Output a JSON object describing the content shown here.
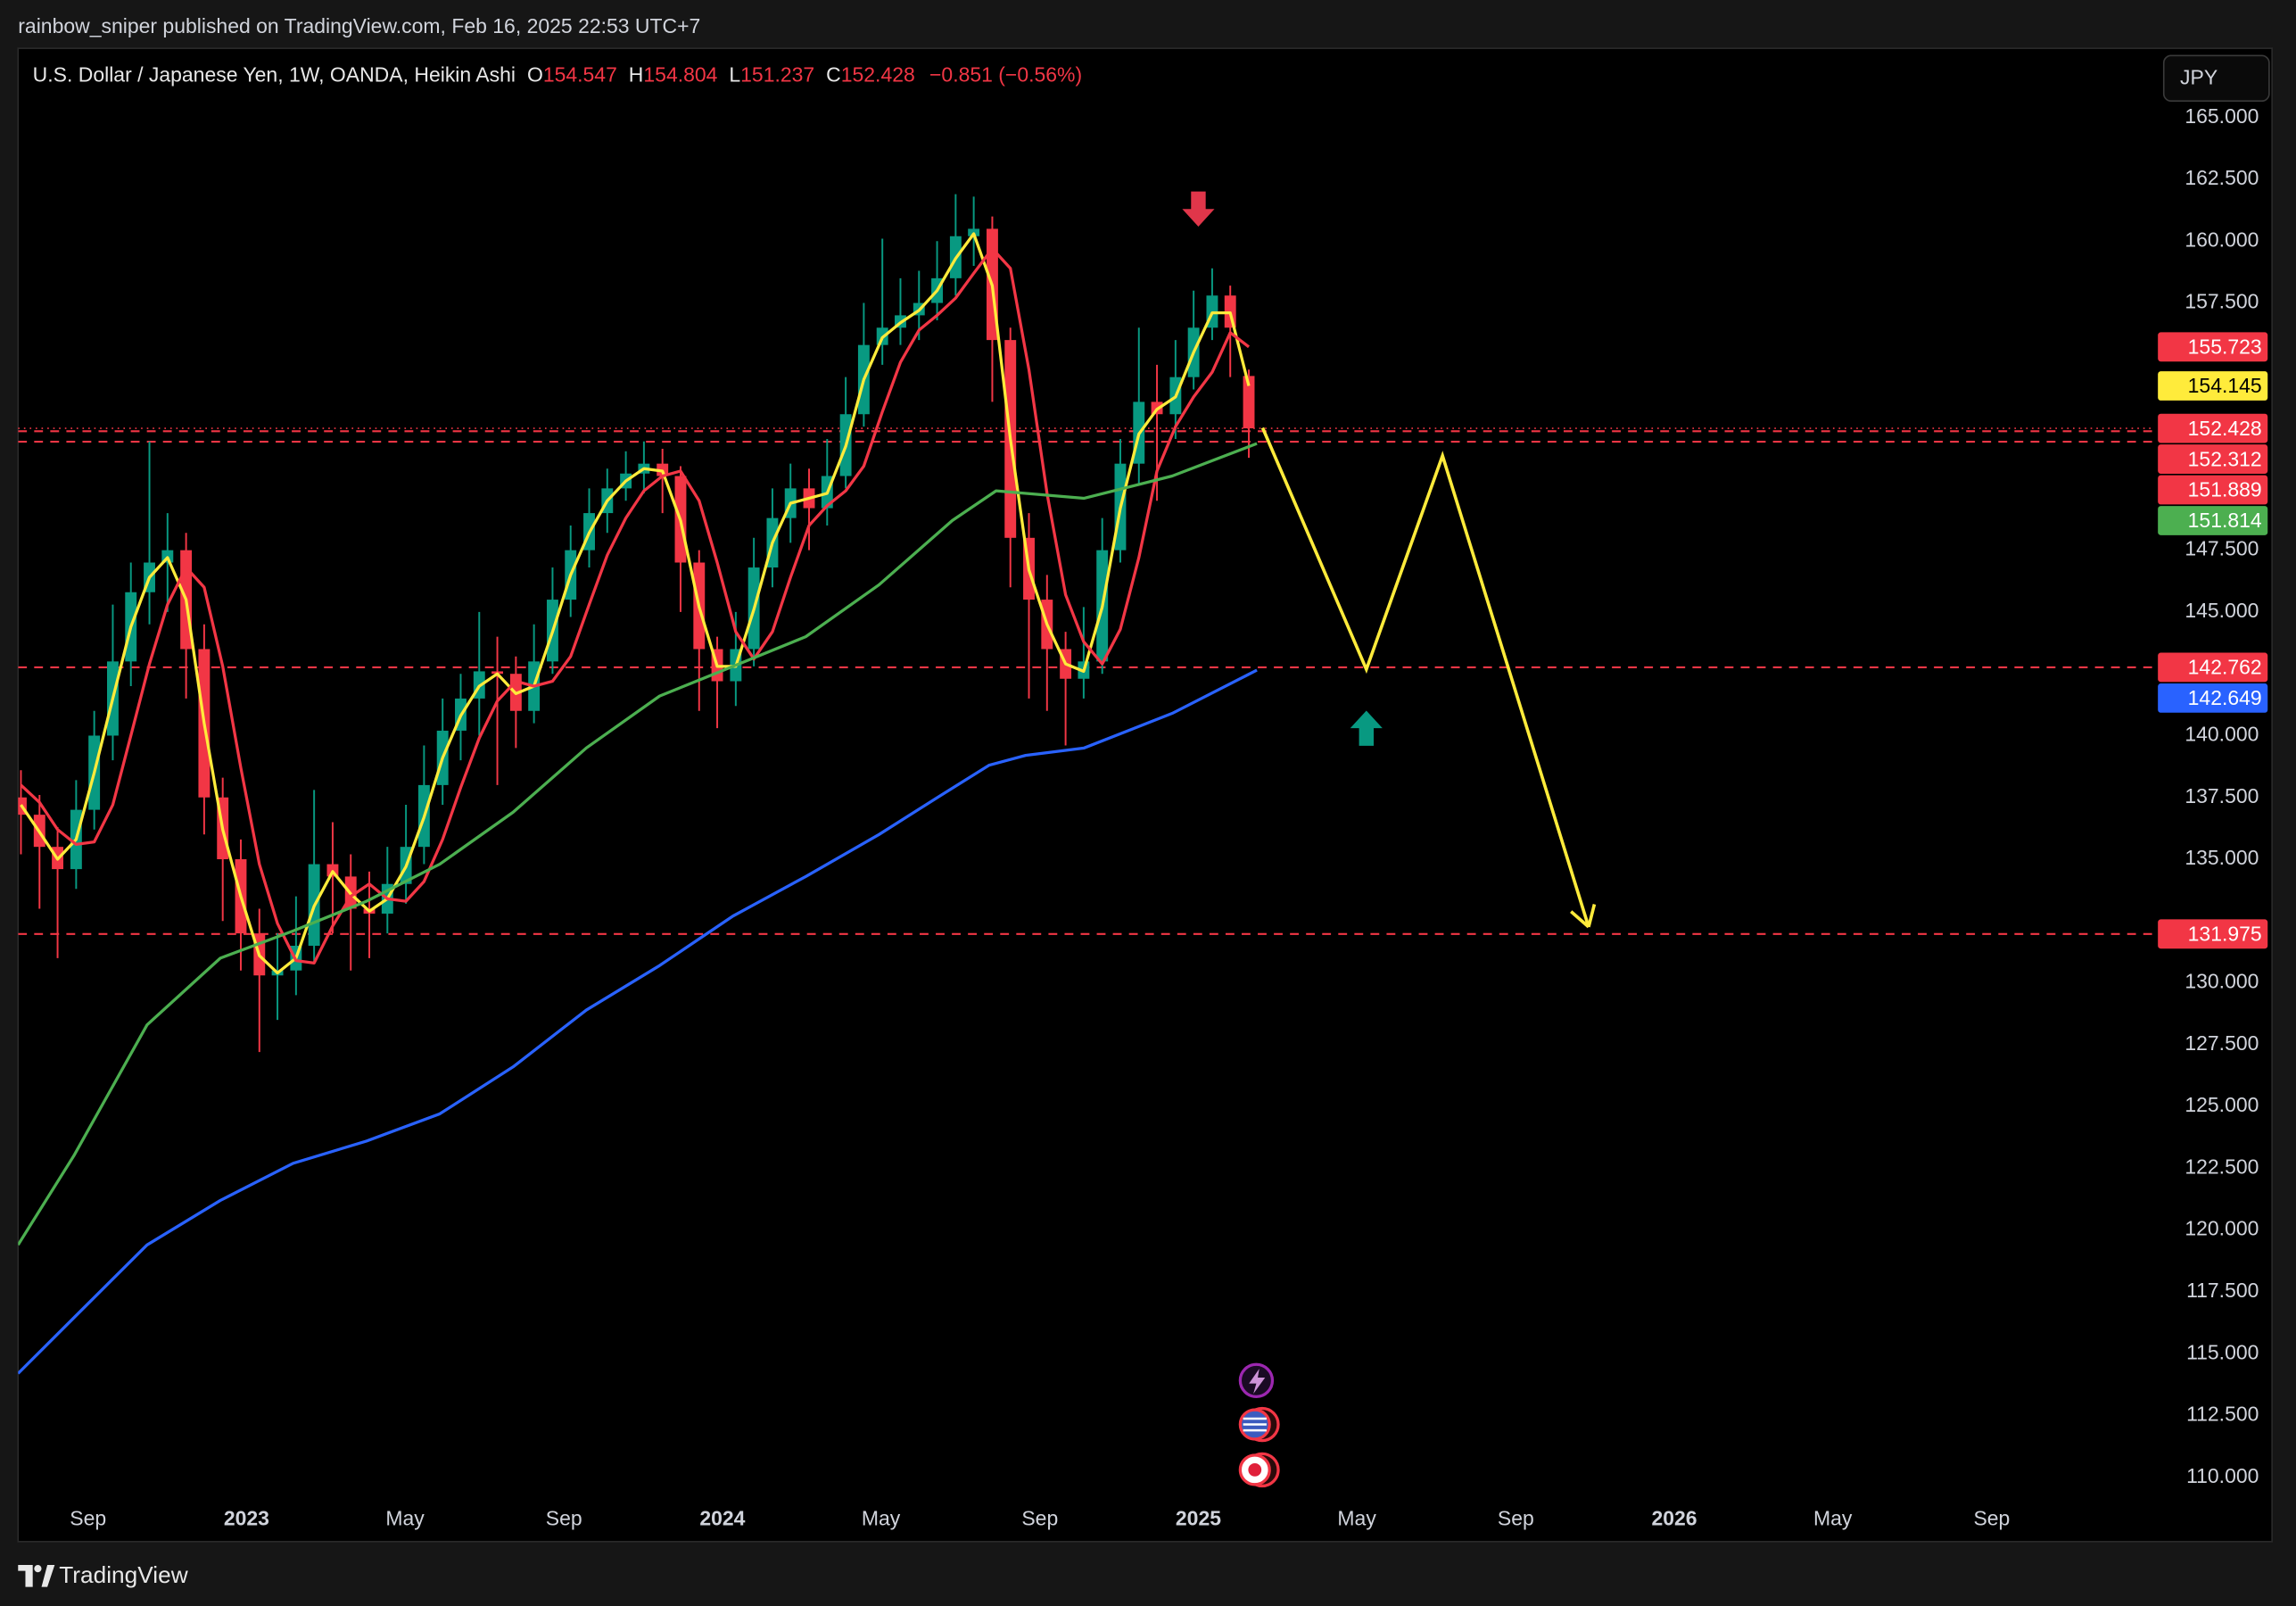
{
  "header": "rainbow_sniper published on TradingView.com, Feb 16, 2025 22:53 UTC+7",
  "footer": "TradingView",
  "chart_data": {
    "type": "candlestick",
    "currency": "JPY",
    "legend": {
      "symbol": "U.S. Dollar / Japanese Yen, 1W, OANDA, Heikin Ashi",
      "open_label": "O",
      "high_label": "H",
      "low_label": "L",
      "close_label": "C",
      "change": "−0.851 (−0.56%)"
    },
    "up_color": "#089981",
    "down_color": "#f23645",
    "x": [
      2022.526,
      2022.565,
      2022.603,
      2022.642,
      2022.68,
      2022.719,
      2022.757,
      2022.796,
      2022.834,
      2022.873,
      2022.911,
      2022.95,
      2022.988,
      2023.027,
      2023.065,
      2023.104,
      2023.142,
      2023.181,
      2023.219,
      2023.258,
      2023.296,
      2023.335,
      2023.373,
      2023.412,
      2023.45,
      2023.489,
      2023.527,
      2023.566,
      2023.604,
      2023.643,
      2023.681,
      2023.72,
      2023.758,
      2023.797,
      2023.835,
      2023.874,
      2023.912,
      2023.951,
      2023.989,
      2024.028,
      2024.066,
      2024.105,
      2024.143,
      2024.182,
      2024.22,
      2024.259,
      2024.297,
      2024.336,
      2024.374,
      2024.413,
      2024.451,
      2024.49,
      2024.528,
      2024.567,
      2024.605,
      2024.644,
      2024.682,
      2024.721,
      2024.759,
      2024.798,
      2024.836,
      2024.875,
      2024.913,
      2024.952,
      2024.99,
      2025.029,
      2025.067,
      2025.106
    ],
    "open": [
      137.5,
      136.8,
      135.5,
      134.6,
      137.0,
      140.0,
      143.0,
      145.8,
      147.0,
      147.5,
      143.5,
      137.5,
      135.0,
      132.0,
      130.3,
      130.5,
      131.5,
      134.8,
      134.3,
      133.0,
      132.8,
      134.0,
      135.5,
      138.0,
      140.2,
      141.5,
      142.6,
      142.5,
      141.0,
      143.0,
      145.5,
      147.5,
      149.0,
      150.0,
      150.6,
      151.0,
      150.5,
      147.0,
      143.5,
      142.2,
      143.5,
      146.8,
      148.8,
      150.0,
      149.2,
      150.5,
      153.0,
      155.8,
      156.5,
      157.0,
      157.5,
      158.5,
      160.2,
      160.5,
      156.0,
      148.0,
      145.5,
      143.5,
      142.3,
      143.0,
      147.5,
      151.0,
      153.5,
      153.0,
      154.5,
      156.5,
      157.8,
      154.547
    ],
    "high": [
      138.6,
      137.6,
      136.3,
      138.2,
      141.0,
      145.3,
      147.0,
      151.9,
      149.0,
      148.2,
      144.5,
      138.3,
      135.8,
      133.0,
      132.0,
      133.5,
      137.8,
      136.5,
      135.2,
      134.5,
      135.5,
      137.2,
      139.6,
      141.5,
      142.5,
      145.0,
      144.0,
      143.2,
      144.5,
      146.8,
      148.5,
      150.0,
      150.8,
      151.5,
      151.9,
      151.6,
      150.9,
      147.5,
      144.0,
      145.0,
      148.0,
      150.0,
      151.0,
      150.8,
      152.0,
      154.5,
      157.5,
      160.1,
      158.5,
      158.8,
      160.0,
      161.9,
      161.8,
      161.0,
      156.5,
      149.0,
      146.5,
      144.2,
      145.2,
      148.8,
      152.0,
      156.5,
      155.0,
      156.0,
      158.0,
      158.9,
      158.2,
      154.804
    ],
    "low": [
      135.2,
      133.0,
      131.0,
      133.8,
      136.2,
      139.0,
      142.0,
      144.5,
      145.0,
      141.5,
      136.0,
      132.5,
      130.5,
      127.2,
      128.5,
      129.5,
      130.8,
      132.0,
      130.5,
      131.0,
      132.0,
      133.2,
      134.8,
      137.2,
      139.0,
      140.0,
      138.0,
      139.5,
      140.5,
      142.5,
      144.8,
      146.8,
      148.2,
      149.5,
      149.8,
      149.0,
      145.0,
      141.0,
      140.3,
      141.2,
      142.8,
      146.0,
      147.8,
      147.5,
      148.5,
      150.0,
      152.5,
      155.0,
      155.8,
      156.0,
      156.8,
      157.8,
      159.0,
      153.5,
      146.0,
      141.5,
      141.0,
      139.6,
      141.5,
      142.5,
      147.0,
      150.2,
      149.5,
      152.0,
      154.0,
      156.0,
      154.5,
      151.237
    ],
    "close": [
      136.8,
      135.5,
      134.6,
      137.0,
      140.0,
      143.0,
      145.8,
      147.0,
      147.5,
      143.5,
      137.5,
      135.0,
      132.0,
      130.3,
      130.5,
      131.5,
      134.8,
      134.3,
      133.0,
      132.8,
      134.0,
      135.5,
      138.0,
      140.2,
      141.5,
      142.6,
      142.5,
      141.0,
      143.0,
      145.5,
      147.5,
      149.0,
      150.0,
      150.6,
      151.0,
      150.5,
      147.0,
      143.5,
      142.2,
      143.5,
      146.8,
      148.8,
      150.0,
      149.2,
      150.5,
      153.0,
      155.8,
      156.5,
      157.0,
      157.5,
      158.5,
      160.2,
      160.5,
      156.0,
      148.0,
      145.5,
      143.5,
      142.3,
      143.0,
      147.5,
      151.0,
      153.5,
      153.0,
      154.5,
      156.5,
      157.8,
      156.5,
      152.428
    ],
    "series": [
      {
        "color": "#ffeb3b",
        "values": [
          137.2,
          136.1,
          135.0,
          135.8,
          138.5,
          141.5,
          144.4,
          146.4,
          147.2,
          145.5,
          140.5,
          136.2,
          133.5,
          131.1,
          130.4,
          131.0,
          133.1,
          134.5,
          133.6,
          132.9,
          133.4,
          134.7,
          136.7,
          139.1,
          140.8,
          142.0,
          142.5,
          141.7,
          142.0,
          144.2,
          146.5,
          148.2,
          149.5,
          150.3,
          150.8,
          150.7,
          148.7,
          145.2,
          142.8,
          142.8,
          145.1,
          147.8,
          149.4,
          149.6,
          149.8,
          151.7,
          154.4,
          156.1,
          156.7,
          157.2,
          158.0,
          159.3,
          160.3,
          158.2,
          152.0,
          146.7,
          144.5,
          142.9,
          142.6,
          145.2,
          149.2,
          152.2,
          153.2,
          153.7,
          155.5,
          157.1,
          157.1,
          154.145
        ]
      },
      {
        "color": "#f23645",
        "values": [
          138.0,
          137.3,
          136.2,
          135.6,
          135.7,
          137.2,
          140.0,
          142.9,
          145.3,
          146.8,
          146.0,
          142.8,
          138.7,
          134.8,
          132.4,
          130.9,
          130.8,
          132.3,
          133.5,
          134.0,
          133.4,
          133.3,
          134.1,
          135.8,
          137.9,
          139.9,
          141.4,
          142.2,
          142.0,
          142.2,
          143.2,
          145.3,
          147.3,
          148.8,
          149.9,
          150.5,
          150.7,
          149.5,
          147.0,
          144.2,
          143.1,
          144.2,
          146.4,
          148.5,
          149.3,
          149.9,
          150.9,
          153.1,
          155.1,
          156.4,
          157.0,
          157.7,
          158.7,
          159.7,
          158.9,
          154.8,
          149.8,
          145.7,
          143.8,
          142.9,
          144.3,
          147.2,
          150.7,
          152.5,
          153.7,
          154.7,
          156.3,
          155.723
        ]
      },
      {
        "color": "#4caf50",
        "x": [
          2022.52,
          2022.637,
          2022.791,
          2022.945,
          2023.098,
          2023.252,
          2023.406,
          2023.56,
          2023.714,
          2023.868,
          2024.022,
          2024.175,
          2024.329,
          2024.483,
          2024.575,
          2024.76,
          2024.945,
          2025.123
        ],
        "values": [
          119.4,
          123.0,
          128.3,
          131.0,
          132.1,
          133.3,
          134.8,
          136.9,
          139.5,
          141.6,
          142.8,
          144.0,
          146.1,
          148.7,
          149.9,
          149.6,
          150.5,
          151.814
        ]
      },
      {
        "color": "#2962ff",
        "x": [
          2022.52,
          2022.637,
          2022.791,
          2022.945,
          2023.098,
          2023.252,
          2023.406,
          2023.56,
          2023.714,
          2023.868,
          2024.022,
          2024.175,
          2024.329,
          2024.452,
          2024.56,
          2024.637,
          2024.76,
          2024.945,
          2025.123
        ],
        "values": [
          114.2,
          116.45,
          119.4,
          121.2,
          122.7,
          123.6,
          124.7,
          126.6,
          128.9,
          130.7,
          132.7,
          134.3,
          136.0,
          137.5,
          138.8,
          139.2,
          139.5,
          140.9,
          142.649
        ]
      }
    ],
    "hlines": [
      {
        "value": 152.312,
        "color": "#f23645"
      },
      {
        "value": 151.889,
        "color": "#f23645"
      },
      {
        "value": 142.762,
        "color": "#f23645"
      },
      {
        "value": 131.975,
        "color": "#f23645"
      }
    ],
    "projection": {
      "color": "#ffeb3b",
      "x": [
        2025.135,
        2025.353,
        2025.513,
        2025.82
      ],
      "y": [
        152.45,
        142.68,
        151.32,
        132.26
      ]
    },
    "signals": [
      {
        "direction": "down",
        "color": "#e0364a",
        "x": 2025.0,
        "y": 161.3
      },
      {
        "direction": "up",
        "color": "#089981",
        "x": 2025.353,
        "y": 140.3
      }
    ],
    "xlim": [
      2022.52,
      2027.01
    ],
    "xticks": [
      {
        "value": 2022.667,
        "label": "Sep"
      },
      2023,
      {
        "value": 2023.333,
        "label": "May"
      },
      {
        "value": 2023.667,
        "label": "Sep"
      },
      2024,
      {
        "value": 2024.333,
        "label": "May"
      },
      {
        "value": 2024.667,
        "label": "Sep"
      },
      2025,
      {
        "value": 2025.333,
        "label": "May"
      },
      {
        "value": 2025.667,
        "label": "Sep"
      },
      2026,
      {
        "value": 2026.333,
        "label": "May"
      },
      {
        "value": 2026.667,
        "label": "Sep"
      }
    ],
    "ylim": [
      107.4,
      167.8
    ],
    "yticks": [
      {
        "value": 165,
        "label": "165.000"
      },
      {
        "value": 162.5,
        "label": "162.500"
      },
      {
        "value": 160,
        "label": "160.000"
      },
      {
        "value": 157.5,
        "label": "157.500"
      },
      {
        "value": 147.5,
        "label": "147.500"
      },
      {
        "value": 145,
        "label": "145.000"
      },
      {
        "value": 140,
        "label": "140.000"
      },
      {
        "value": 137.5,
        "label": "137.500"
      },
      {
        "value": 135,
        "label": "135.000"
      },
      {
        "value": 130,
        "label": "130.000"
      },
      {
        "value": 127.5,
        "label": "127.500"
      },
      {
        "value": 125,
        "label": "125.000"
      },
      {
        "value": 122.5,
        "label": "122.500"
      },
      {
        "value": 120,
        "label": "120.000"
      },
      {
        "value": 117.5,
        "label": "117.500"
      },
      {
        "value": 115,
        "label": "115.000"
      },
      {
        "value": 112.5,
        "label": "112.500"
      },
      {
        "value": 110,
        "label": "110.000"
      }
    ]
  }
}
